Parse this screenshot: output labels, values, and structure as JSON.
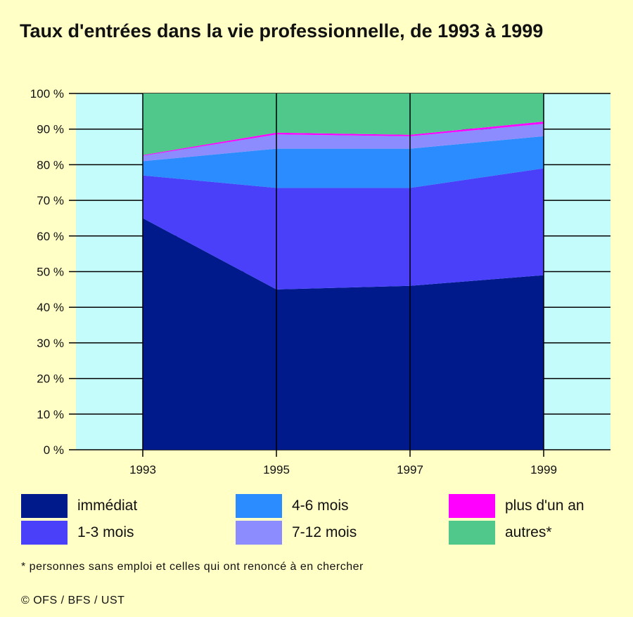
{
  "title": "Taux d'entrées dans la vie professionnelle, de 1993 à 1999",
  "footnote": "* personnes sans emploi et celles qui ont renoncé à en chercher",
  "copyright": "© OFS / BFS / UST",
  "colors": {
    "background": "#ffffc6",
    "plot_background": "#c4fcfc",
    "grid": "#000000"
  },
  "chart_data": {
    "type": "area",
    "stacked": true,
    "x": [
      1993,
      1995,
      1997,
      1999
    ],
    "xticks": [
      "1993",
      "1995",
      "1997",
      "1999"
    ],
    "xlim": [
      1992,
      2000
    ],
    "ylim": [
      0,
      100
    ],
    "yticks": [
      "0 %",
      "10 %",
      "20 %",
      "30 %",
      "40 %",
      "50 %",
      "60 %",
      "70 %",
      "80 %",
      "90 %",
      "100 %"
    ],
    "grid": true,
    "legend_position": "bottom",
    "series": [
      {
        "name": "immédiat",
        "color": "#001a8c",
        "values": [
          65,
          45,
          46,
          49
        ]
      },
      {
        "name": "1-3 mois",
        "color": "#4a40fa",
        "values": [
          12,
          28.5,
          27.5,
          30
        ]
      },
      {
        "name": "4-6 mois",
        "color": "#2a8cff",
        "values": [
          4,
          11,
          11,
          9
        ]
      },
      {
        "name": "7-12 mois",
        "color": "#8c8cff",
        "values": [
          1.5,
          4,
          3.5,
          3.5
        ]
      },
      {
        "name": "plus d'un an",
        "color": "#ff00ff",
        "values": [
          0.2,
          0.5,
          0.4,
          0.6
        ]
      },
      {
        "name": "autres*",
        "color": "#50c88c",
        "values": [
          17.3,
          11,
          11.6,
          7.9
        ]
      }
    ]
  }
}
